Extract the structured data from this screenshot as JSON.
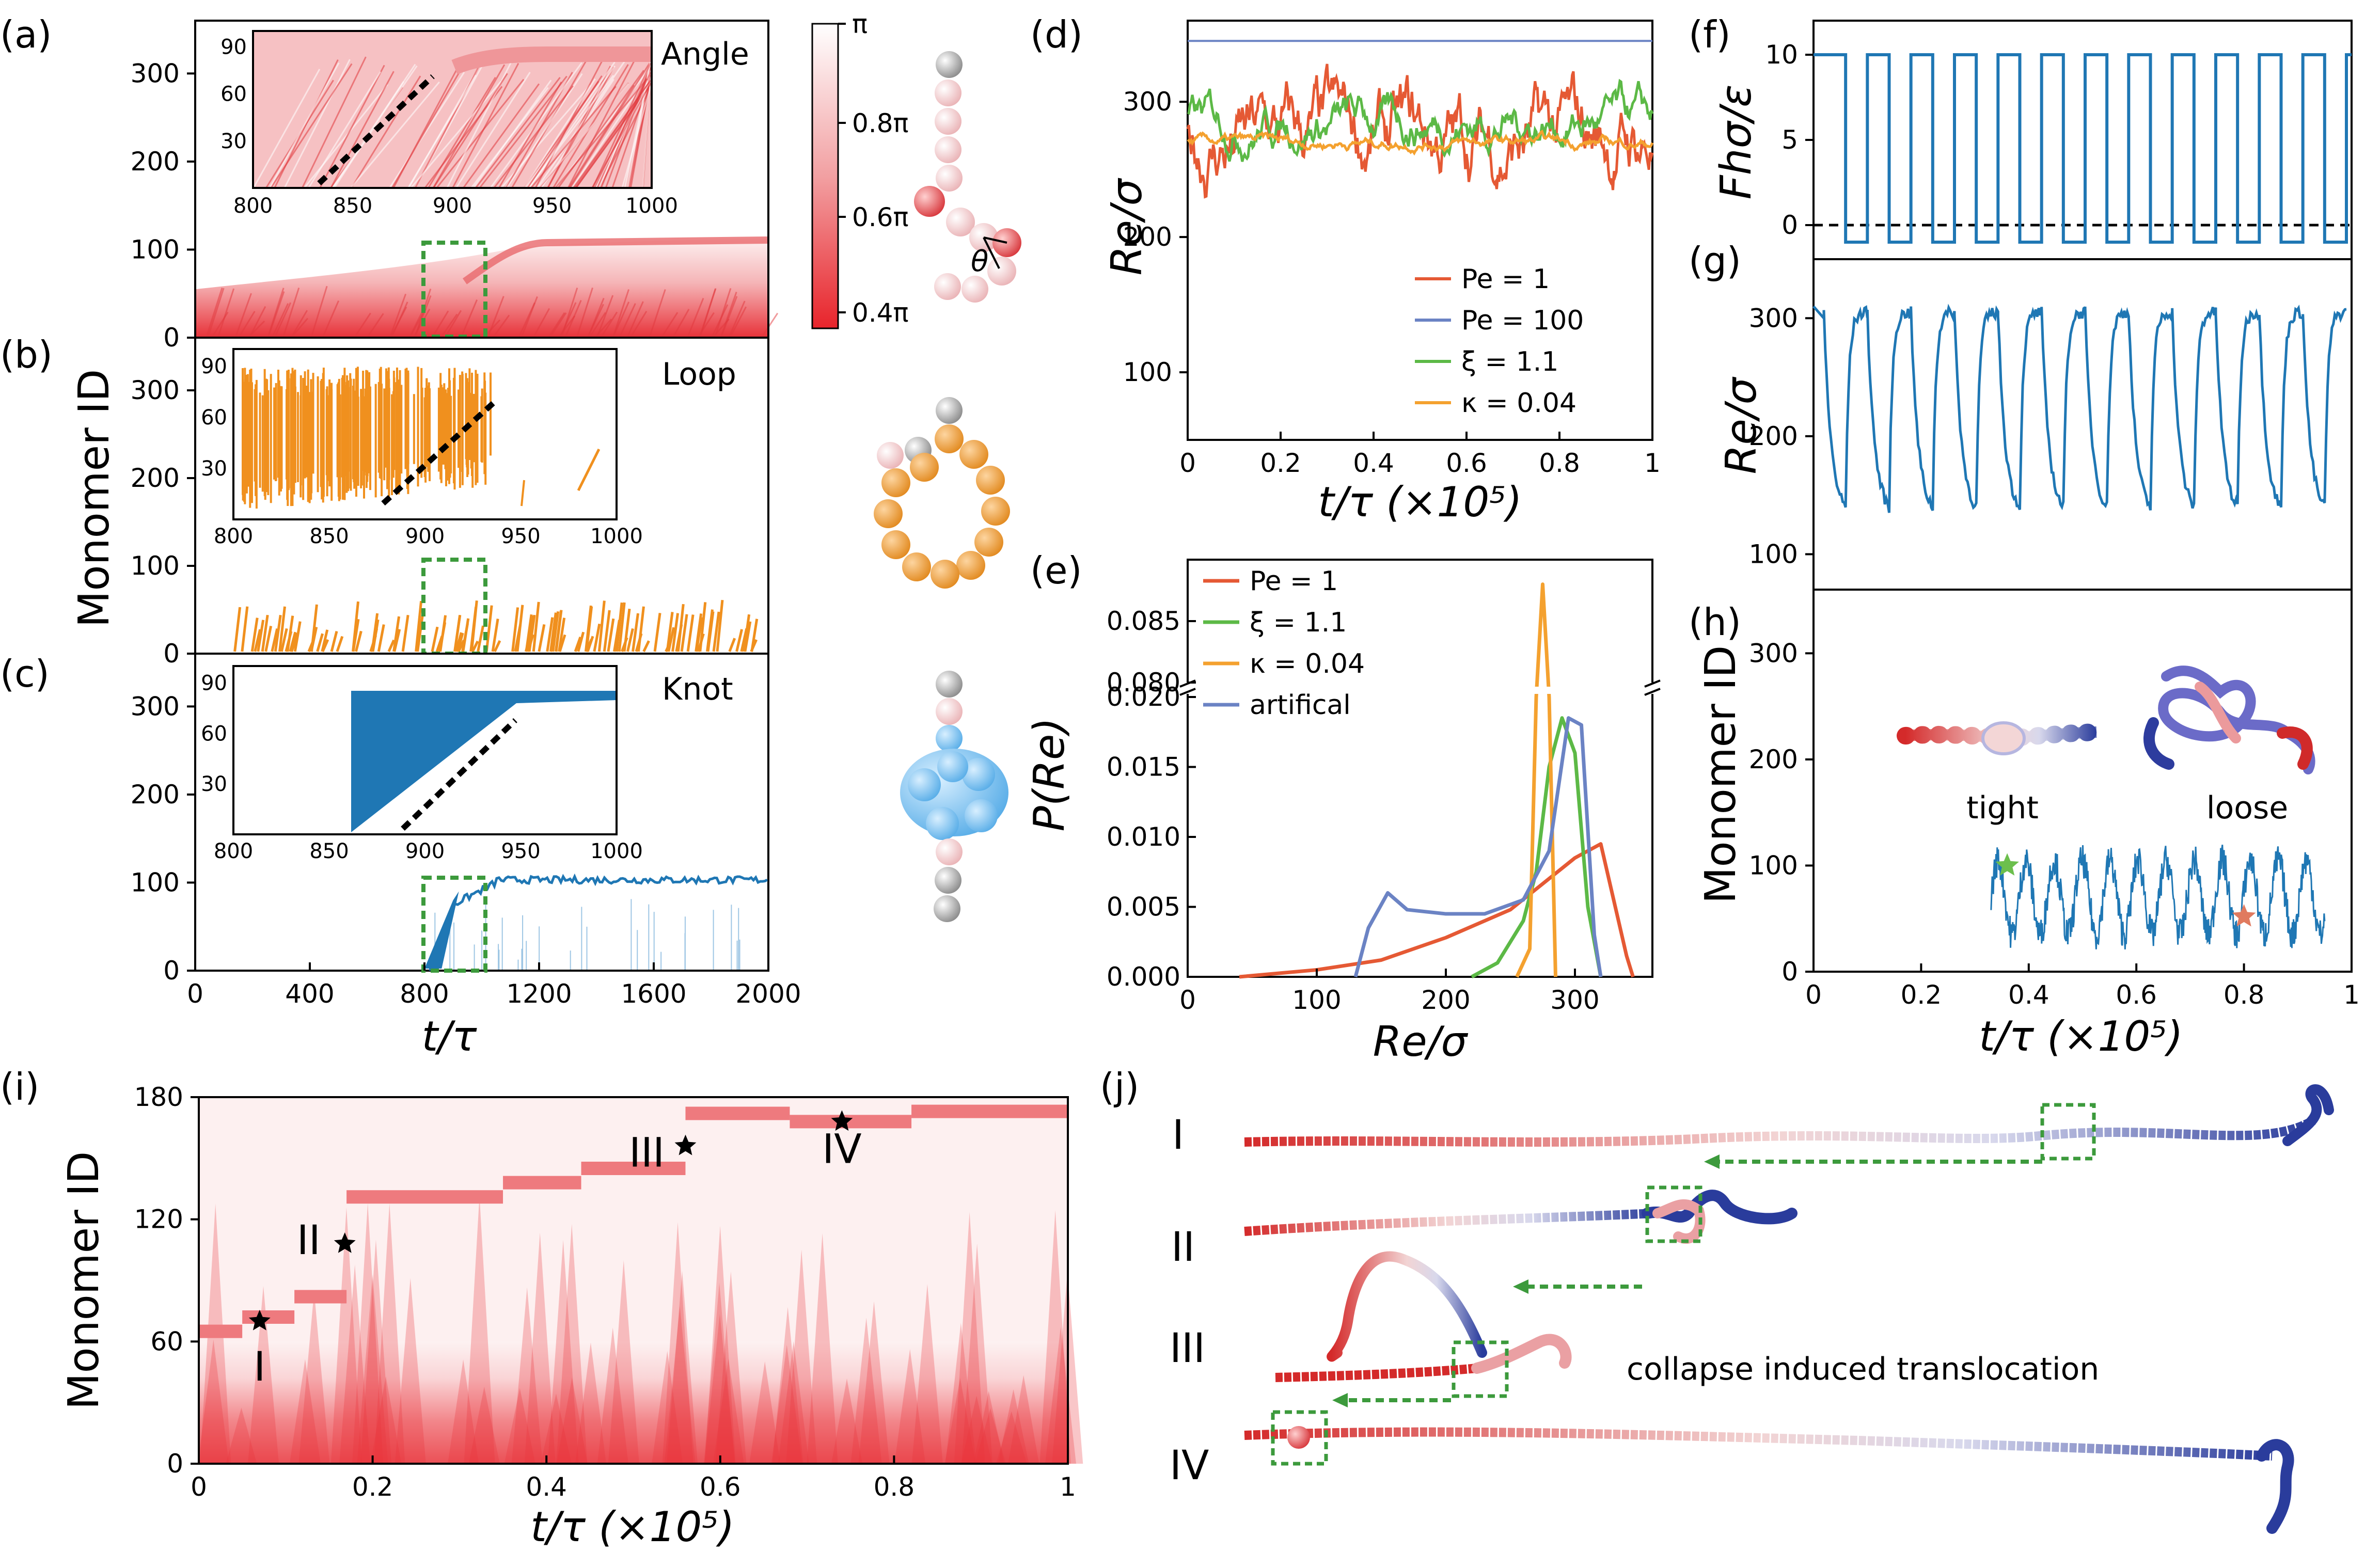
{
  "panel_labels": {
    "a": "(a)",
    "b": "(b)",
    "c": "(c)",
    "d": "(d)",
    "e": "(e)",
    "f": "(f)",
    "g": "(g)",
    "h": "(h)",
    "i": "(i)",
    "j": "(j)"
  },
  "chart_data": [
    {
      "id": "a",
      "type": "heatmap",
      "title": "Angle",
      "xlabel": "",
      "ylabel": "Monomer ID",
      "xlim": [
        0,
        2000
      ],
      "ylim": [
        0,
        360
      ],
      "yticks": [
        0,
        100,
        200,
        300
      ],
      "boundary_plateau": 105,
      "inset": {
        "xlim": [
          800,
          1000
        ],
        "ylim": [
          0,
          100
        ],
        "xticks": [
          800,
          850,
          900,
          950,
          1000
        ],
        "yticks": [
          30,
          60,
          90
        ]
      },
      "colorbar": {
        "ticks": [
          "π",
          "0.8π",
          "0.6π",
          "0.4π"
        ],
        "low_color": "#e8242b",
        "high_color": "#ffffff"
      }
    },
    {
      "id": "b",
      "type": "scatter",
      "title": "Loop",
      "color": "#f0901e",
      "xlim": [
        0,
        2000
      ],
      "ylim": [
        0,
        360
      ],
      "yticks": [
        0,
        100,
        200,
        300
      ],
      "inset": {
        "xlim": [
          800,
          1000
        ],
        "ylim": [
          0,
          100
        ],
        "xticks": [
          800,
          850,
          900,
          950,
          1000
        ],
        "yticks": [
          30,
          60,
          90
        ]
      }
    },
    {
      "id": "c",
      "type": "line",
      "title": "Knot",
      "color": "#1f77b4",
      "xlabel": "t/τ",
      "xlim": [
        0,
        2000
      ],
      "ylim": [
        0,
        360
      ],
      "xticks": [
        0,
        400,
        800,
        1200,
        1600,
        2000
      ],
      "yticks": [
        0,
        100,
        200,
        300
      ],
      "inset": {
        "xlim": [
          800,
          1000
        ],
        "ylim": [
          0,
          100
        ],
        "xticks": [
          800,
          850,
          900,
          950,
          1000
        ],
        "yticks": [
          30,
          60,
          90
        ]
      }
    },
    {
      "id": "d",
      "type": "line",
      "xlabel": "t/τ  (×10⁵)",
      "ylabel": "Re/σ",
      "xlim": [
        0,
        1
      ],
      "ylim": [
        50,
        360
      ],
      "xticks": [
        "0",
        "0.2",
        "0.4",
        "0.6",
        "0.8",
        "1"
      ],
      "yticks": [
        100,
        200,
        300
      ],
      "series": [
        {
          "name": "Pe = 1",
          "color": "#e55934",
          "mean": 270,
          "spread": 60
        },
        {
          "name": "Pe = 100",
          "color": "#6b83c4",
          "mean": 345,
          "spread": 0
        },
        {
          "name": "ξ = 1.1",
          "color": "#5cb946",
          "mean": 285,
          "spread": 30
        },
        {
          "name": "κ = 0.04",
          "color": "#f4a12f",
          "mean": 270,
          "spread": 8
        }
      ]
    },
    {
      "id": "e",
      "type": "line",
      "xlabel": "Re/σ",
      "ylabel": "P(Re)",
      "xlim": [
        0,
        360
      ],
      "xticks": [
        0,
        100,
        200,
        300
      ],
      "ylim_lower": [
        0,
        0.02
      ],
      "yticks_lower": [
        "0.000",
        "0.005",
        "0.010",
        "0.015",
        "0.020"
      ],
      "ylim_upper": [
        0.08,
        0.09
      ],
      "yticks_upper": [
        "0.080",
        "0.085"
      ],
      "series": [
        {
          "name": "Pe = 1",
          "color": "#e55934",
          "x": [
            40,
            100,
            150,
            200,
            250,
            300,
            320,
            340,
            345
          ],
          "y": [
            0.0,
            0.0005,
            0.0012,
            0.0028,
            0.0048,
            0.0085,
            0.0095,
            0.0015,
            0.0
          ]
        },
        {
          "name": "ξ = 1.1",
          "color": "#5cb946",
          "x": [
            220,
            240,
            260,
            270,
            280,
            290,
            300,
            310,
            320
          ],
          "y": [
            0.0,
            0.001,
            0.004,
            0.0075,
            0.015,
            0.0185,
            0.016,
            0.005,
            0.0
          ]
        },
        {
          "name": "κ = 0.04",
          "color": "#f4a12f",
          "x": [
            255,
            265,
            270,
            275,
            280,
            285
          ],
          "y": [
            0.0,
            0.002,
            0.02,
            0.088,
            0.02,
            0.0
          ]
        },
        {
          "name": "artifical",
          "color": "#6b83c4",
          "x": [
            130,
            140,
            155,
            170,
            200,
            230,
            260,
            280,
            295,
            305,
            315,
            320
          ],
          "y": [
            0.0,
            0.0035,
            0.006,
            0.0048,
            0.0045,
            0.0045,
            0.0055,
            0.009,
            0.0185,
            0.018,
            0.003,
            0.0
          ]
        }
      ]
    },
    {
      "id": "f",
      "type": "line",
      "ylabel": "Fhσ/ε",
      "color": "#1f77b4",
      "xlim": [
        0,
        1
      ],
      "ylim": [
        -2,
        12
      ],
      "yticks": [
        0,
        5,
        10
      ],
      "periods": 12,
      "high": 10,
      "low": -1,
      "reference_line": 0
    },
    {
      "id": "g",
      "type": "line",
      "ylabel": "Re/σ",
      "color": "#1f77b4",
      "xlim": [
        0,
        1
      ],
      "ylim": [
        70,
        350
      ],
      "yticks": [
        100,
        200,
        300
      ],
      "periods": 12,
      "max": 305,
      "min": 140
    },
    {
      "id": "h",
      "type": "line",
      "ylabel": "Monomer ID",
      "xlabel": "t/τ  (×10⁵)",
      "color": "#1f77b4",
      "xlim": [
        0,
        1
      ],
      "ylim": [
        0,
        360
      ],
      "xticks": [
        "0",
        "0.2",
        "0.4",
        "0.6",
        "0.8",
        "1"
      ],
      "yticks": [
        0,
        100,
        200,
        300
      ],
      "annotations": [
        {
          "text": "tight",
          "color": "#6cbf4d",
          "x": 0.36,
          "y": 100
        },
        {
          "text": "loose",
          "color": "#e07a5f",
          "x": 0.8,
          "y": 52
        }
      ]
    },
    {
      "id": "i",
      "type": "heatmap",
      "ylabel": "Monomer ID",
      "xlabel": "t/τ  (×10⁵)",
      "xlim": [
        0,
        1
      ],
      "ylim": [
        0,
        180
      ],
      "xticks": [
        "0",
        "0.2",
        "0.4",
        "0.6",
        "0.8",
        "1"
      ],
      "yticks": [
        0,
        60,
        120,
        180
      ],
      "steps": [
        {
          "x0": 0.0,
          "x1": 0.05,
          "y": 65
        },
        {
          "x0": 0.05,
          "x1": 0.11,
          "y": 72
        },
        {
          "x0": 0.11,
          "x1": 0.17,
          "y": 82
        },
        {
          "x0": 0.17,
          "x1": 0.35,
          "y": 131
        },
        {
          "x0": 0.35,
          "x1": 0.44,
          "y": 138
        },
        {
          "x0": 0.44,
          "x1": 0.56,
          "y": 145
        },
        {
          "x0": 0.56,
          "x1": 0.68,
          "y": 172
        },
        {
          "x0": 0.68,
          "x1": 0.82,
          "y": 168
        },
        {
          "x0": 0.82,
          "x1": 1.0,
          "y": 173
        }
      ],
      "markers": [
        {
          "label": "I",
          "x": 0.07,
          "y": 70
        },
        {
          "label": "II",
          "x": 0.168,
          "y": 108
        },
        {
          "label": "III",
          "x": 0.56,
          "y": 156
        },
        {
          "label": "IV",
          "x": 0.74,
          "y": 168
        }
      ]
    }
  ],
  "panel_j": {
    "rows": [
      "I",
      "II",
      "III",
      "IV"
    ],
    "caption": "collapse induced translocation",
    "caption_color": "#3c9a3c"
  }
}
